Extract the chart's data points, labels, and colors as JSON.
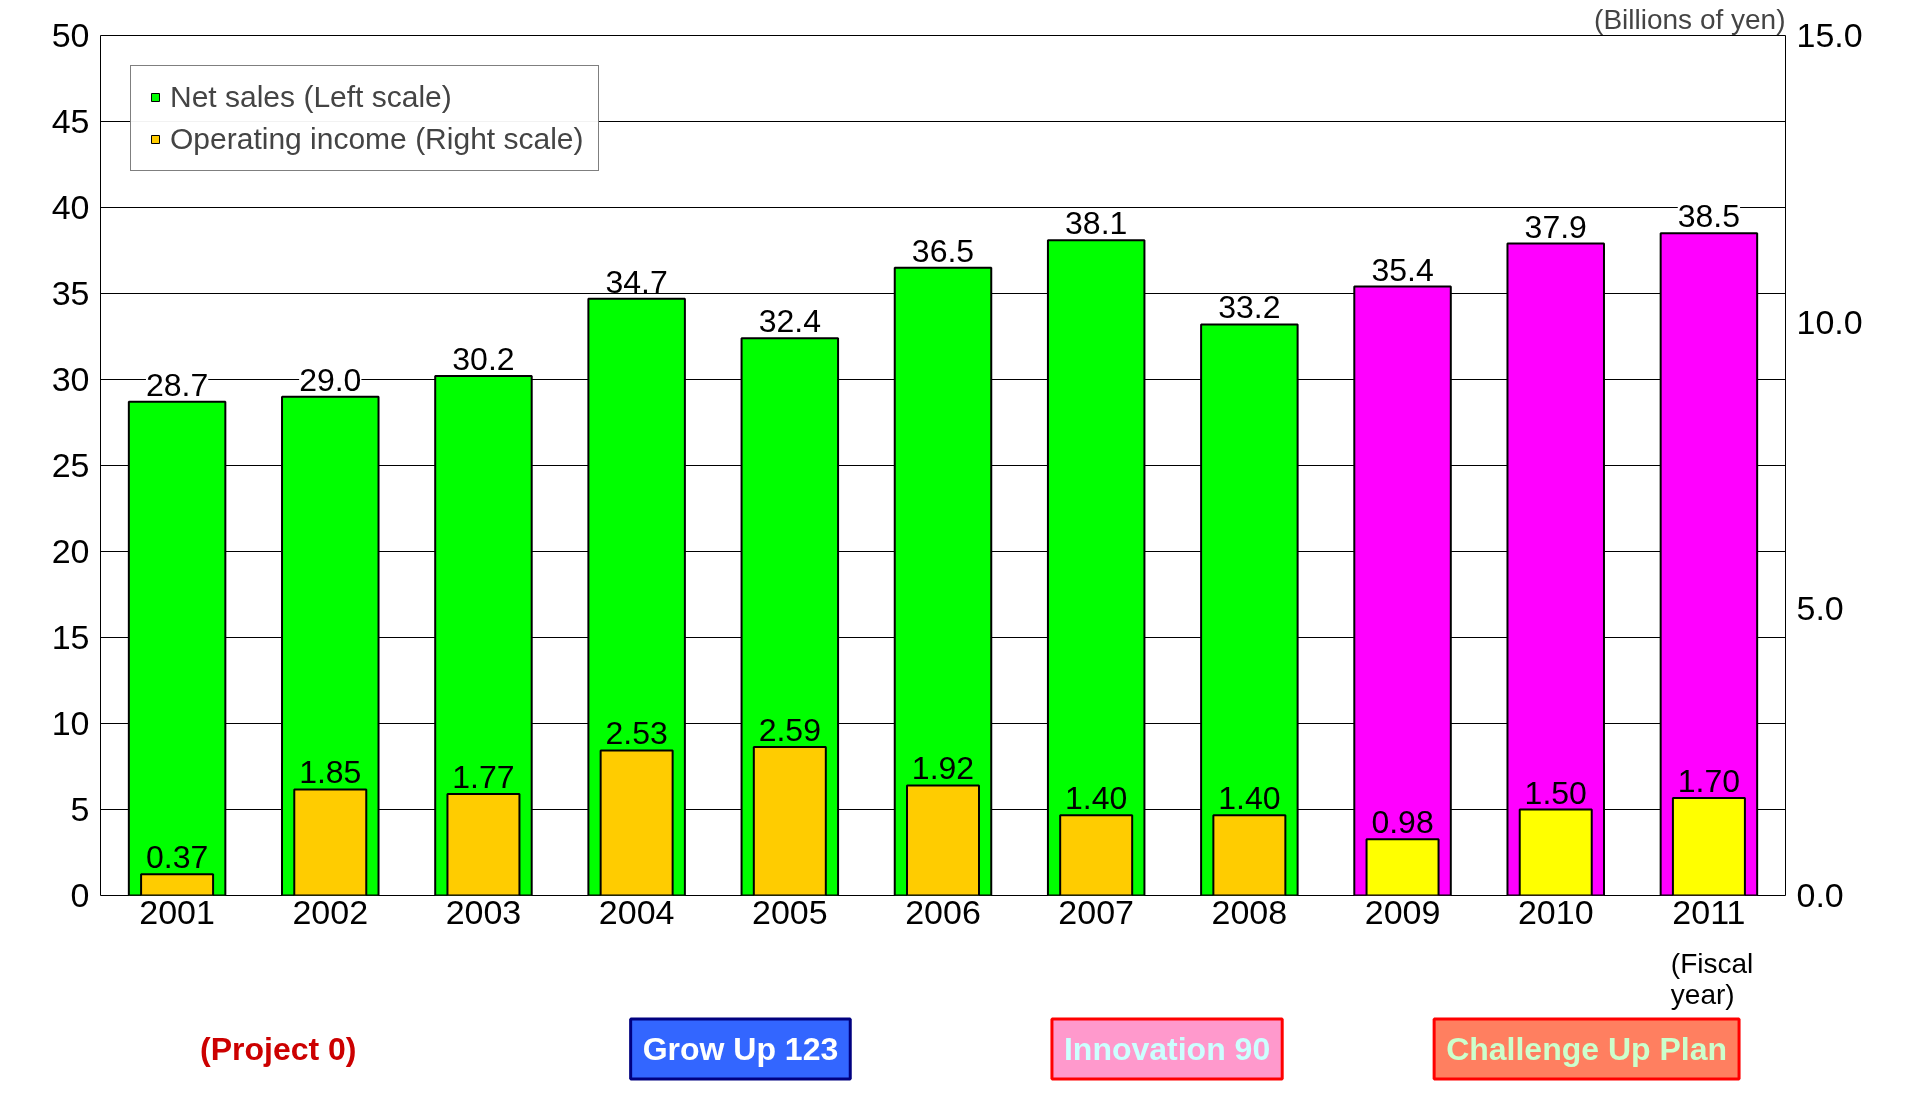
{
  "chart_data": {
    "type": "bar",
    "categories": [
      "2001",
      "2002",
      "2003",
      "2004",
      "2005",
      "2006",
      "2007",
      "2008",
      "2009",
      "2010",
      "2011"
    ],
    "series": [
      {
        "name": "Net sales (Left scale)",
        "color": "#00ff00",
        "colors": [
          "#00ff00",
          "#00ff00",
          "#00ff00",
          "#00ff00",
          "#00ff00",
          "#00ff00",
          "#00ff00",
          "#00ff00",
          "#ff00ff",
          "#ff00ff",
          "#ff00ff"
        ],
        "values": [
          28.7,
          29.0,
          30.2,
          34.7,
          32.4,
          36.5,
          38.1,
          33.2,
          35.4,
          37.9,
          38.5
        ],
        "value_labels": [
          "28.7",
          "29.0",
          "30.2",
          "34.7",
          "32.4",
          "36.5",
          "38.1",
          "33.2",
          "35.4",
          "37.9",
          "38.5"
        ]
      },
      {
        "name": "Operating income (Right scale)",
        "color": "#ffcc00",
        "axis": "y2",
        "colors": [
          "#ffcc00",
          "#ffcc00",
          "#ffcc00",
          "#ffcc00",
          "#ffcc00",
          "#ffcc00",
          "#ffcc00",
          "#ffcc00",
          "#ffff00",
          "#ffff00",
          "#ffff00"
        ],
        "values": [
          0.37,
          1.85,
          1.77,
          2.53,
          2.59,
          1.92,
          1.4,
          1.4,
          0.98,
          1.5,
          1.7
        ],
        "value_labels": [
          "0.37",
          "1.85",
          "1.77",
          "2.53",
          "2.59",
          "1.92",
          "1.40",
          "1.40",
          "0.98",
          "1.50",
          "1.70"
        ]
      }
    ],
    "ylim": [
      0,
      50
    ],
    "yticks": [
      0,
      5,
      10,
      15,
      20,
      25,
      30,
      35,
      40,
      45,
      50
    ],
    "y2lim": [
      0,
      15
    ],
    "y2ticks": [
      {
        "value": 0,
        "label": "0.0"
      },
      {
        "value": 5,
        "label": "5.0"
      },
      {
        "value": 10,
        "label": "10.0"
      },
      {
        "value": 15,
        "label": "15.0"
      }
    ],
    "y2label": "(Billions of yen)",
    "xlabel": "(Fiscal year)",
    "annotations": [
      "(Project 0)",
      "Grow Up 123",
      "Innovation 90",
      "Challenge Up Plan"
    ],
    "grid": "y",
    "legend": "top left"
  }
}
